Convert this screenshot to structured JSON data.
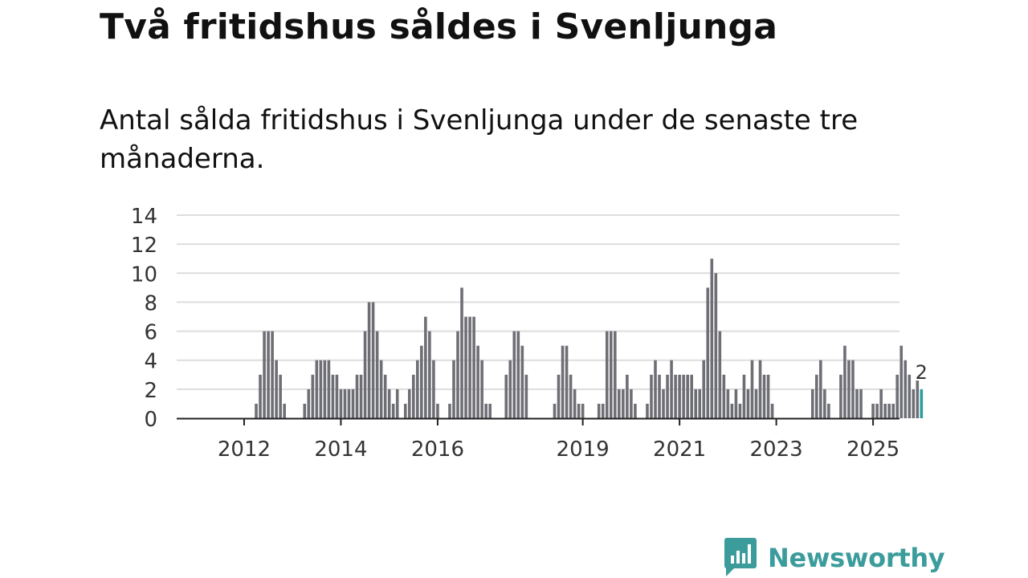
{
  "title": "Två fritidshus såldes i Svenljunga",
  "subtitle": "Antal sålda fritidshus i Svenljunga under de senaste tre månaderna.",
  "brand": {
    "name": "Newsworthy",
    "color": "#3c9c9c"
  },
  "colors": {
    "bar": "#6e6e75",
    "highlight": "#2e9c9c",
    "grid": "#dddddd",
    "axis": "#222222"
  },
  "chart_data": {
    "type": "bar",
    "title": "Två fritidshus såldes i Svenljunga",
    "ylim": [
      0,
      14
    ],
    "y_ticks": [
      "0",
      "2",
      "4",
      "6",
      "8",
      "10",
      "12",
      "14"
    ],
    "x_tick_labels": [
      {
        "label": "2012",
        "at": 8
      },
      {
        "label": "2014",
        "at": 32
      },
      {
        "label": "2016",
        "at": 56
      },
      {
        "label": "2019",
        "at": 92
      },
      {
        "label": "2021",
        "at": 116
      },
      {
        "label": "2023",
        "at": 140
      },
      {
        "label": "2025",
        "at": 164
      }
    ],
    "values": [
      0,
      0,
      0,
      0,
      0,
      0,
      0,
      0,
      0,
      0,
      0,
      1,
      3,
      6,
      6,
      6,
      4,
      3,
      1,
      0,
      0,
      0,
      0,
      1,
      2,
      3,
      4,
      4,
      4,
      4,
      3,
      3,
      2,
      2,
      2,
      2,
      3,
      3,
      6,
      8,
      8,
      6,
      4,
      3,
      2,
      1,
      2,
      0,
      1,
      2,
      3,
      4,
      5,
      7,
      6,
      4,
      1,
      0,
      0,
      1,
      4,
      6,
      9,
      7,
      7,
      7,
      5,
      4,
      1,
      1,
      0,
      0,
      0,
      3,
      4,
      6,
      6,
      5,
      3,
      0,
      0,
      0,
      0,
      0,
      0,
      1,
      3,
      5,
      5,
      3,
      2,
      1,
      1,
      0,
      0,
      0,
      1,
      1,
      6,
      6,
      6,
      2,
      2,
      3,
      2,
      1,
      0,
      0,
      1,
      3,
      4,
      3,
      2,
      3,
      4,
      3,
      3,
      3,
      3,
      3,
      2,
      2,
      4,
      9,
      11,
      10,
      6,
      3,
      2,
      1,
      2,
      1,
      3,
      2,
      4,
      2,
      4,
      3,
      3,
      1,
      0,
      0,
      0,
      0,
      0,
      0,
      0,
      0,
      0,
      2,
      3,
      4,
      2,
      1,
      0,
      0,
      3,
      5,
      4,
      4,
      2,
      2,
      0,
      0,
      1,
      1,
      2,
      1,
      1,
      1,
      3,
      5,
      4,
      3,
      2,
      2.6,
      2
    ],
    "last_value_label": "2"
  }
}
